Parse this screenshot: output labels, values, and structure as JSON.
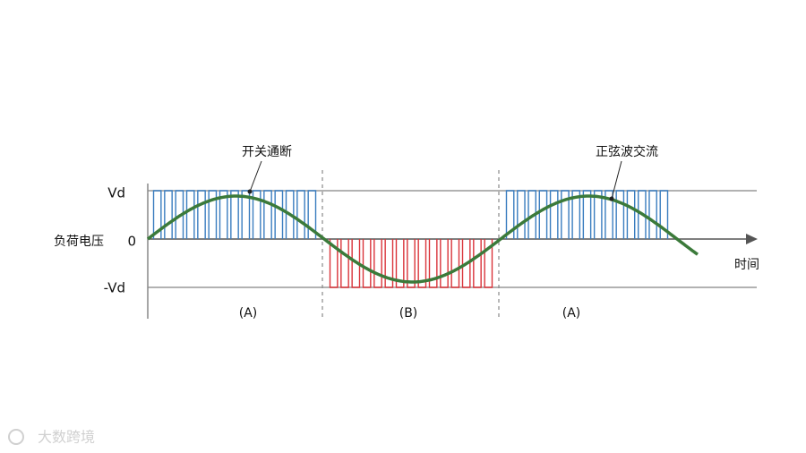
{
  "labels": {
    "switching": "开关通断",
    "sine": "正弦波交流",
    "y_axis": "负荷电压",
    "x_axis": "时间",
    "vd": "Vd",
    "zero": "0",
    "neg_vd": "-Vd"
  },
  "regions": [
    "(A)",
    "(B)",
    "(A)"
  ],
  "watermark": "大数跨境"
}
